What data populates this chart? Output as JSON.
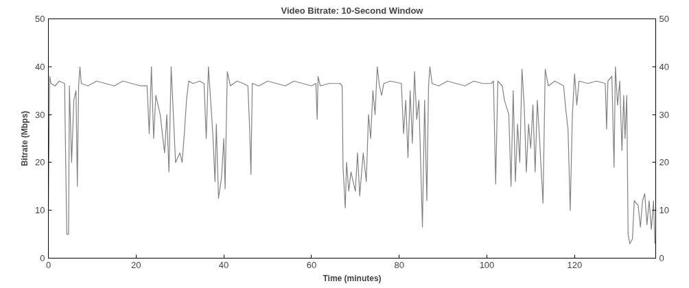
{
  "chart_data": {
    "type": "line",
    "title": "Video Bitrate: 10-Second Window",
    "xlabel": "Time (minutes)",
    "ylabel": "Bitrate (Mbps)",
    "xlim": [
      0,
      138.5
    ],
    "xticks": [
      0,
      20,
      40,
      60,
      80,
      100,
      120
    ],
    "ylim": [
      0,
      50
    ],
    "yticks": [
      0,
      10,
      20,
      30,
      40,
      50
    ],
    "y2lim": [
      0,
      50
    ],
    "y2ticks": [
      0,
      10,
      20,
      30,
      40,
      50
    ],
    "grid": false,
    "marker": "none",
    "line_style": "solid",
    "series": [
      {
        "color": "#808080",
        "x": [
          0,
          0.3,
          0.6,
          1.5,
          2.5,
          3.7,
          4.0,
          4.2,
          4.6,
          4.8,
          5.3,
          5.8,
          6.3,
          6.6,
          6.9,
          7.2,
          7.5,
          9,
          11,
          13,
          15,
          17,
          19,
          21,
          22.5,
          23.0,
          23.5,
          24.0,
          24.5,
          25.5,
          26.5,
          27,
          27.5,
          28,
          28.5,
          29,
          30,
          30.5,
          31,
          31.5,
          32,
          33,
          34.5,
          35.5,
          36,
          36.5,
          37,
          37.5,
          38,
          38.3,
          38.8,
          39.5,
          40,
          40.3,
          40.8,
          41.5,
          43,
          44.5,
          45.5,
          45.9,
          46.2,
          46.5,
          48,
          50,
          52,
          54,
          56,
          58,
          60,
          61,
          61.3,
          61.5,
          62,
          64,
          66.5,
          67,
          67.2,
          67.7,
          68,
          68.5,
          69,
          70,
          70.5,
          71,
          71.8,
          72.5,
          73,
          73.5,
          74,
          74.5,
          75,
          75.5,
          76,
          76.5,
          78,
          80.5,
          81,
          81.5,
          82,
          82.5,
          83,
          83.5,
          84,
          84.5,
          85.3,
          85.8,
          86.3,
          86.7,
          87,
          87.5,
          89,
          91,
          93,
          95,
          97,
          99,
          101,
          101.5,
          102,
          102.5,
          103.5,
          104,
          105,
          105.5,
          106,
          106.5,
          107,
          107.5,
          108,
          108.5,
          109,
          109.5,
          110,
          110.5,
          111,
          111.5,
          112,
          112.8,
          113.3,
          114,
          115.5,
          117.5,
          118,
          118.5,
          119,
          119.5,
          120,
          120.5,
          121,
          123,
          125,
          127,
          127.3,
          127.6,
          128.5,
          129,
          129.3,
          129.8,
          130.3,
          130.8,
          131.2,
          131.5,
          131.9,
          132.2,
          132.6,
          133.2,
          133.6,
          134.5,
          135,
          135.5,
          136,
          136.5,
          137,
          137.5,
          138,
          138.3
        ],
        "values": [
          10,
          38,
          36.5,
          36,
          37,
          36.5,
          17,
          5,
          5,
          36,
          20,
          33,
          35,
          15,
          36,
          40,
          36.5,
          36,
          37,
          36.5,
          36,
          37,
          36.5,
          36,
          36,
          26,
          40,
          25,
          34,
          30,
          22,
          30,
          18,
          40,
          30,
          20,
          22,
          20,
          26,
          33,
          37,
          36.5,
          37,
          36.5,
          25,
          40,
          33,
          26,
          16,
          28,
          12.5,
          17,
          25,
          14.5,
          39,
          36,
          37,
          36.5,
          36,
          27,
          17.5,
          36.5,
          36,
          37,
          36.5,
          36,
          37,
          36.5,
          36,
          36.5,
          29,
          38,
          36,
          36.5,
          36.5,
          36,
          19,
          10.5,
          20,
          14,
          18,
          14,
          22,
          13,
          22,
          16,
          30,
          25,
          35,
          30,
          40,
          36,
          34,
          36.5,
          37,
          36.5,
          26,
          33,
          21,
          35,
          24,
          39,
          29,
          33,
          6.5,
          33,
          12,
          36,
          40,
          36.5,
          36,
          37,
          36.5,
          36,
          37,
          36.5,
          36.5,
          37,
          15.5,
          37,
          36,
          33,
          30,
          15,
          35,
          16,
          28,
          20,
          39.5,
          32,
          18,
          28,
          23,
          32,
          18,
          33,
          25,
          11.5,
          39.5,
          36,
          37,
          36,
          31,
          27,
          10,
          30,
          38.5,
          32,
          37,
          36.5,
          37,
          36.5,
          27,
          37,
          38,
          19,
          40,
          32,
          37,
          22.5,
          34,
          25,
          34,
          5,
          3,
          4,
          12,
          11,
          6.5,
          12,
          13.5,
          7,
          12,
          6,
          12,
          3
        ]
      }
    ]
  }
}
